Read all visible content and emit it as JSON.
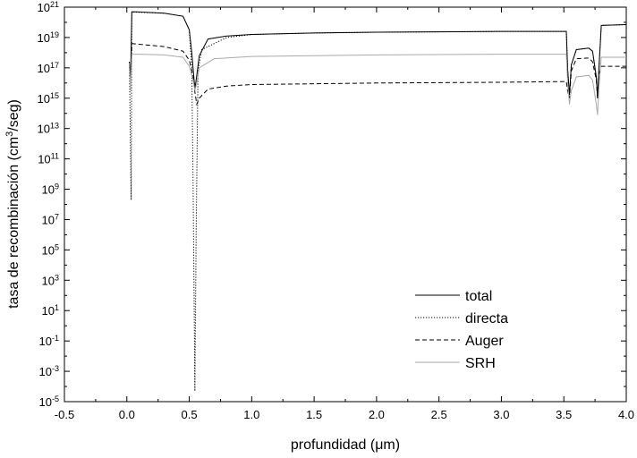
{
  "chart_data": {
    "type": "line",
    "title": "",
    "xlabel": "profundidad (μm)",
    "ylabel": "tasa de recombinación (cm³/seg)",
    "ylabel_parts": {
      "base": "tasa de recombinación (cm",
      "sup": "3",
      "tail": "/seg)"
    },
    "xlim": [
      -0.5,
      4.0
    ],
    "ylim_exponent": [
      -5,
      21
    ],
    "y_scale": "log",
    "x_ticks": [
      -0.5,
      0.0,
      0.5,
      1.0,
      1.5,
      2.0,
      2.5,
      3.0,
      3.5,
      4.0
    ],
    "x_tick_labels": [
      "-0.5",
      "0.0",
      "0.5",
      "1.0",
      "1.5",
      "2.0",
      "2.5",
      "3.0",
      "3.5",
      "4.0"
    ],
    "y_tick_exponents": [
      -5,
      -3,
      -1,
      1,
      3,
      5,
      7,
      9,
      11,
      13,
      15,
      17,
      19,
      21
    ],
    "y_tick_base": "10",
    "grid": false,
    "legend_position": "bottom-right",
    "series": [
      {
        "name": "total",
        "style": "solid",
        "color": "#000000",
        "points": [
          [
            0.02,
            17.4
          ],
          [
            0.03,
            16.4
          ],
          [
            0.04,
            20.7
          ],
          [
            0.1,
            20.68
          ],
          [
            0.3,
            20.6
          ],
          [
            0.45,
            20.4
          ],
          [
            0.5,
            19.5
          ],
          [
            0.52,
            18.0
          ],
          [
            0.545,
            15.6
          ],
          [
            0.56,
            16.5
          ],
          [
            0.58,
            17.8
          ],
          [
            0.65,
            18.9
          ],
          [
            0.8,
            19.1
          ],
          [
            1.0,
            19.2
          ],
          [
            1.5,
            19.3
          ],
          [
            2.0,
            19.35
          ],
          [
            3.0,
            19.4
          ],
          [
            3.52,
            19.4
          ],
          [
            3.53,
            17.0
          ],
          [
            3.545,
            15.2
          ],
          [
            3.56,
            17.2
          ],
          [
            3.6,
            18.2
          ],
          [
            3.7,
            18.3
          ],
          [
            3.73,
            18.1
          ],
          [
            3.76,
            16.4
          ],
          [
            3.77,
            15.0
          ],
          [
            3.78,
            16.8
          ],
          [
            3.8,
            19.8
          ],
          [
            4.0,
            19.85
          ]
        ]
      },
      {
        "name": "directa",
        "style": "dotted",
        "color": "#000000",
        "points": [
          [
            0.02,
            17.4
          ],
          [
            0.035,
            8.3
          ],
          [
            0.04,
            20.68
          ],
          [
            0.1,
            20.66
          ],
          [
            0.3,
            20.6
          ],
          [
            0.45,
            20.4
          ],
          [
            0.5,
            19.5
          ],
          [
            0.52,
            17.0
          ],
          [
            0.53,
            10.0
          ],
          [
            0.545,
            -4.3
          ],
          [
            0.555,
            6.0
          ],
          [
            0.57,
            16.8
          ],
          [
            0.6,
            18.2
          ],
          [
            0.8,
            19.0
          ],
          [
            1.0,
            19.2
          ],
          [
            1.5,
            19.3
          ],
          [
            2.0,
            19.35
          ],
          [
            3.0,
            19.4
          ],
          [
            3.52,
            19.4
          ],
          [
            3.53,
            17.0
          ],
          [
            3.545,
            15.2
          ],
          [
            3.56,
            17.2
          ],
          [
            3.6,
            18.2
          ],
          [
            3.7,
            18.3
          ],
          [
            3.73,
            18.1
          ],
          [
            3.76,
            16.4
          ],
          [
            3.77,
            15.0
          ],
          [
            3.78,
            16.8
          ],
          [
            3.8,
            19.8
          ],
          [
            4.0,
            19.85
          ]
        ]
      },
      {
        "name": "Auger",
        "style": "dashed",
        "color": "#000000",
        "points": [
          [
            0.02,
            17.2
          ],
          [
            0.03,
            16.0
          ],
          [
            0.04,
            18.6
          ],
          [
            0.1,
            18.55
          ],
          [
            0.3,
            18.4
          ],
          [
            0.45,
            18.1
          ],
          [
            0.5,
            17.5
          ],
          [
            0.53,
            16.5
          ],
          [
            0.545,
            15.4
          ],
          [
            0.56,
            14.6
          ],
          [
            0.58,
            15.0
          ],
          [
            0.65,
            15.6
          ],
          [
            0.8,
            15.8
          ],
          [
            1.0,
            15.9
          ],
          [
            2.0,
            16.0
          ],
          [
            3.0,
            16.05
          ],
          [
            3.52,
            16.1
          ],
          [
            3.53,
            15.5
          ],
          [
            3.545,
            15.0
          ],
          [
            3.56,
            16.8
          ],
          [
            3.6,
            17.6
          ],
          [
            3.7,
            17.65
          ],
          [
            3.73,
            17.4
          ],
          [
            3.76,
            16.2
          ],
          [
            3.77,
            15.0
          ],
          [
            3.78,
            16.5
          ],
          [
            3.8,
            17.1
          ],
          [
            4.0,
            17.1
          ]
        ]
      },
      {
        "name": "SRH",
        "style": "solid",
        "color": "#aaaaaa",
        "points": [
          [
            0.02,
            17.3
          ],
          [
            0.03,
            15.5
          ],
          [
            0.04,
            17.9
          ],
          [
            0.1,
            17.9
          ],
          [
            0.3,
            17.85
          ],
          [
            0.45,
            17.7
          ],
          [
            0.5,
            17.1
          ],
          [
            0.53,
            16.2
          ],
          [
            0.545,
            15.5
          ],
          [
            0.56,
            16.0
          ],
          [
            0.58,
            17.0
          ],
          [
            0.7,
            17.6
          ],
          [
            1.0,
            17.75
          ],
          [
            2.0,
            17.85
          ],
          [
            3.0,
            17.9
          ],
          [
            3.52,
            17.9
          ],
          [
            3.53,
            16.0
          ],
          [
            3.545,
            14.6
          ],
          [
            3.56,
            15.5
          ],
          [
            3.6,
            16.4
          ],
          [
            3.7,
            16.5
          ],
          [
            3.73,
            16.2
          ],
          [
            3.76,
            14.6
          ],
          [
            3.77,
            13.9
          ],
          [
            3.78,
            15.5
          ],
          [
            3.8,
            17.7
          ],
          [
            4.0,
            17.7
          ]
        ]
      }
    ]
  }
}
